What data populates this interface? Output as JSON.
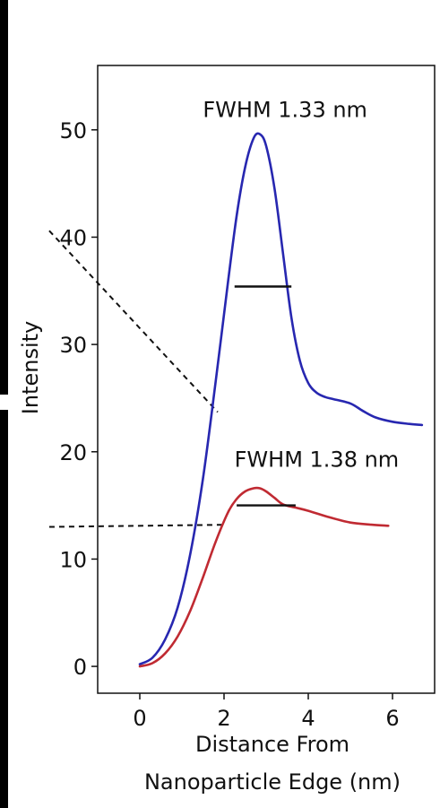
{
  "chart_data": {
    "type": "line",
    "xlabel": "Distance From\nNanoparticle Edge (nm)",
    "xlabel_lines": [
      "Distance From",
      "Nanoparticle Edge (nm)"
    ],
    "ylabel": "Intensity",
    "xlim": [
      -1.0,
      7.0
    ],
    "ylim": [
      -2.5,
      56.0
    ],
    "xticks": [
      0,
      2,
      4,
      6
    ],
    "yticks": [
      0,
      10,
      20,
      30,
      40,
      50
    ],
    "grid": false,
    "legend": "none",
    "series": [
      {
        "color": "#2727b0",
        "x": [
          0.0,
          0.3,
          0.6,
          0.9,
          1.2,
          1.5,
          1.8,
          2.1,
          2.3,
          2.5,
          2.7,
          2.85,
          3.0,
          3.2,
          3.4,
          3.6,
          3.8,
          4.0,
          4.2,
          4.4,
          4.6,
          5.0,
          5.3,
          5.6,
          6.0,
          6.4,
          6.7
        ],
        "y": [
          0.2,
          0.8,
          2.5,
          5.5,
          10.5,
          17.5,
          26.5,
          36.0,
          42.0,
          46.5,
          49.2,
          49.6,
          48.5,
          44.5,
          38.5,
          32.5,
          28.5,
          26.4,
          25.5,
          25.1,
          24.9,
          24.5,
          23.8,
          23.2,
          22.8,
          22.6,
          22.5
        ]
      },
      {
        "color": "#c02a32",
        "x": [
          0.0,
          0.3,
          0.6,
          0.9,
          1.2,
          1.5,
          1.8,
          2.1,
          2.3,
          2.5,
          2.7,
          2.85,
          3.0,
          3.2,
          3.4,
          3.7,
          4.0,
          4.5,
          5.0,
          5.5,
          5.9
        ],
        "y": [
          0.0,
          0.3,
          1.2,
          2.8,
          5.2,
          8.3,
          11.6,
          14.4,
          15.6,
          16.3,
          16.6,
          16.6,
          16.3,
          15.7,
          15.1,
          14.8,
          14.5,
          13.9,
          13.4,
          13.2,
          13.1
        ]
      }
    ],
    "fwhm_markers": [
      {
        "x_start": 2.25,
        "x_end": 3.6,
        "y": 35.4
      },
      {
        "x_start": 2.3,
        "x_end": 3.7,
        "y": 15.0
      }
    ],
    "guide_lines": [
      {
        "x": [
          -2.15,
          1.85
        ],
        "y": [
          40.6,
          23.7
        ]
      },
      {
        "x": [
          -2.15,
          2.05
        ],
        "y": [
          13.0,
          13.2
        ]
      }
    ],
    "annotations": [
      {
        "text": "FWHM 1.33 nm",
        "x": 3.45,
        "y": 51.2
      },
      {
        "text": "FWHM 1.38 nm",
        "x": 4.2,
        "y": 18.6
      }
    ]
  },
  "colors": {
    "axis": "#111111",
    "fwhm_bar": "#111111",
    "guide": "#111111",
    "edge_bar": "#000000"
  }
}
